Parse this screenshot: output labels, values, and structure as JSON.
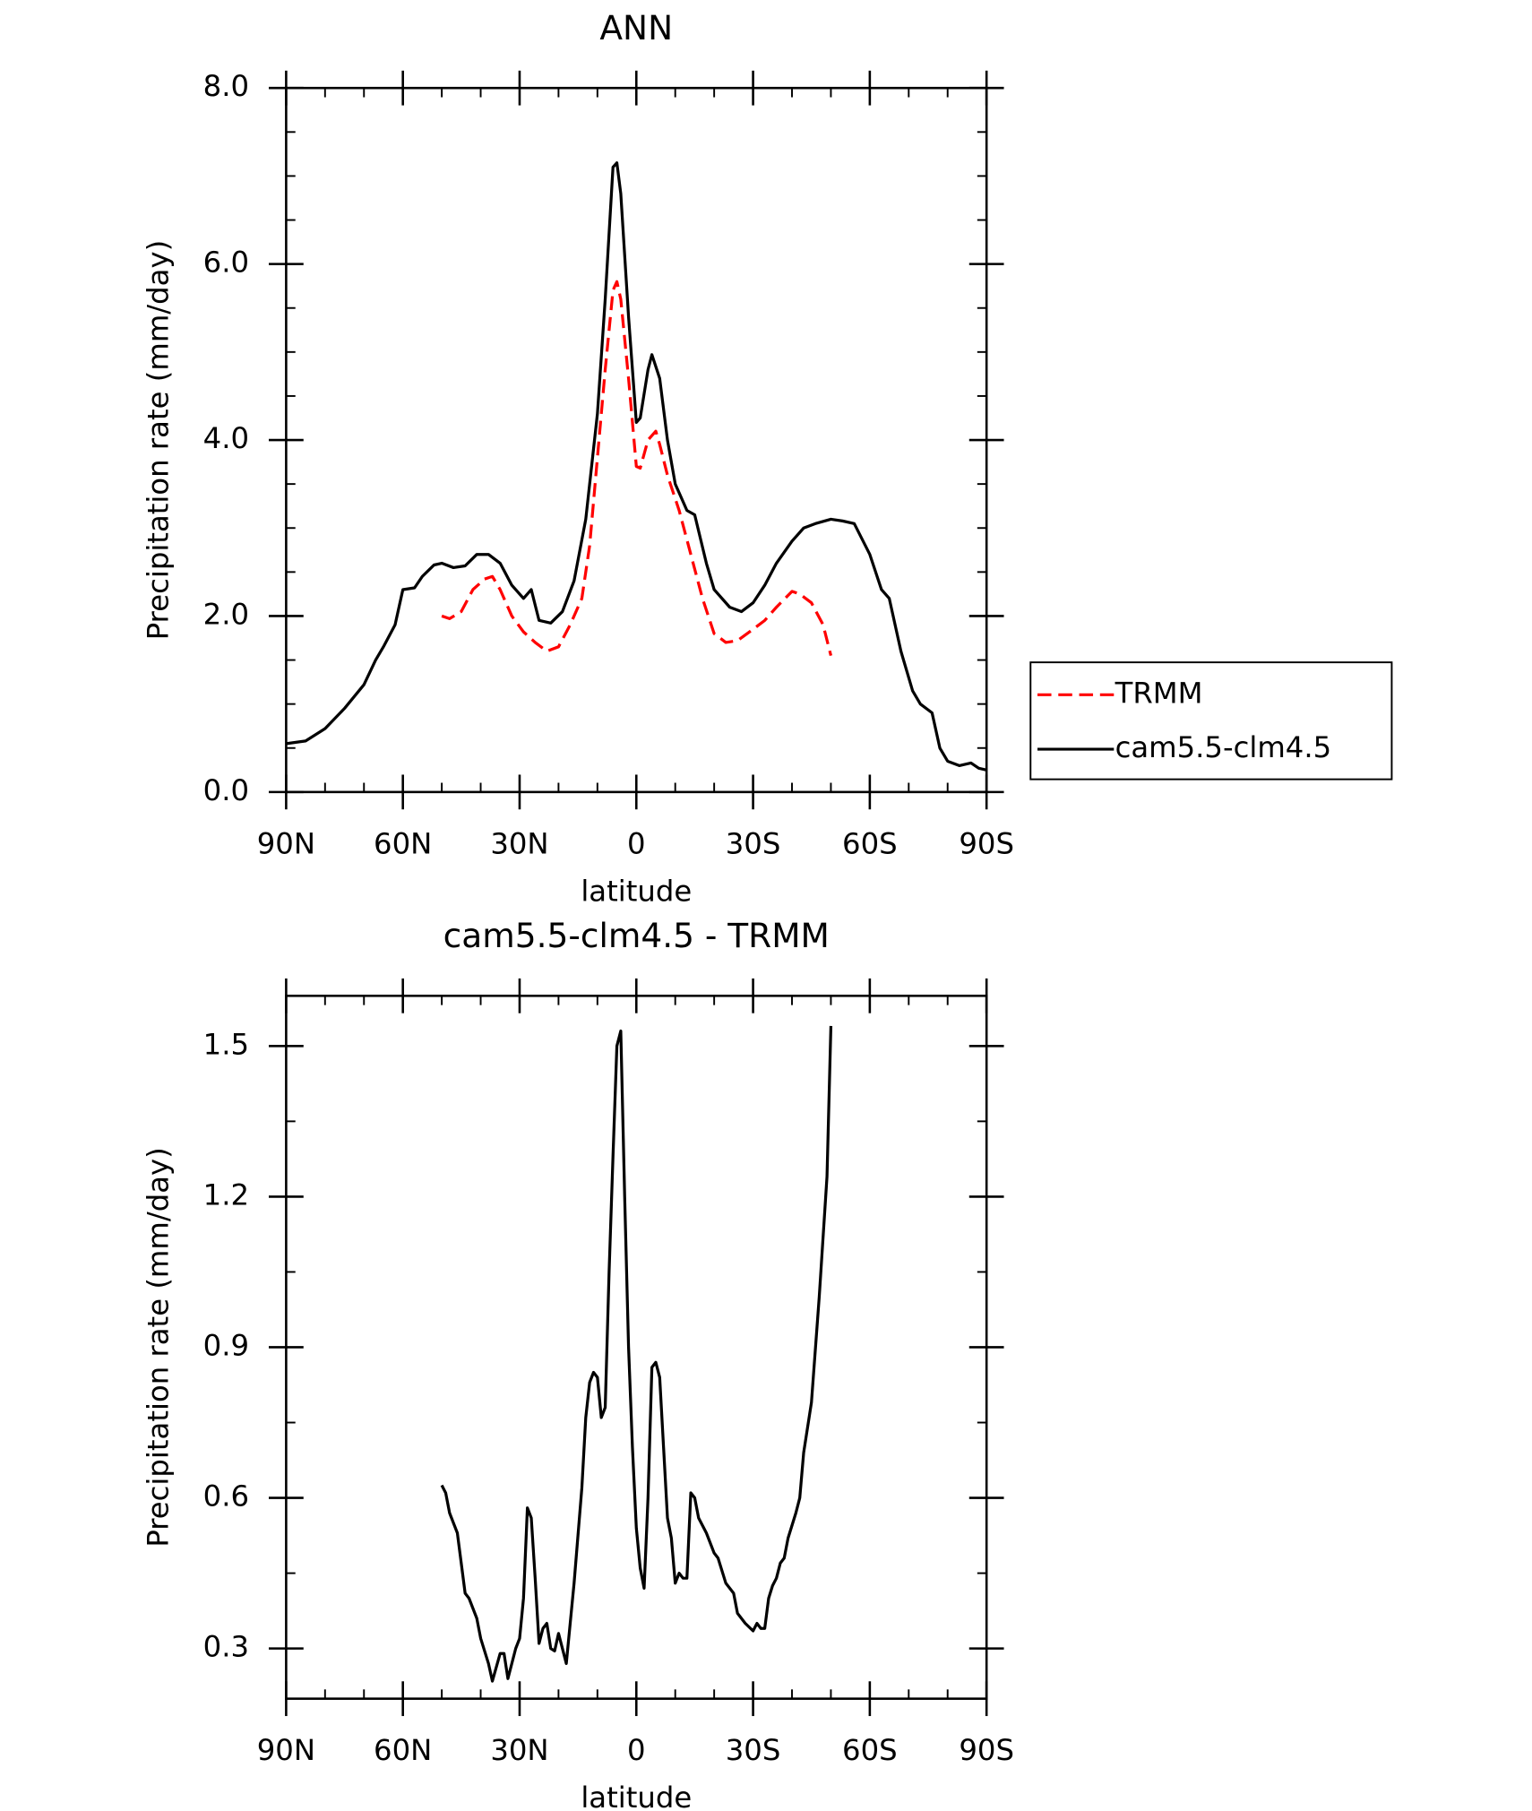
{
  "chart_data": [
    {
      "type": "line",
      "title": "ANN",
      "xlabel": "latitude",
      "ylabel": "Precipitation rate (mm/day)",
      "xlim": [
        90,
        -90
      ],
      "xticks": [
        {
          "value": 90,
          "label": "90N"
        },
        {
          "value": 60,
          "label": "60N"
        },
        {
          "value": 30,
          "label": "30N"
        },
        0,
        {
          "value": -30,
          "label": "30S"
        },
        {
          "value": -60,
          "label": "60S"
        },
        {
          "value": -90,
          "label": "90S"
        }
      ],
      "ylim": [
        0,
        8
      ],
      "yticks": [
        {
          "value": 0,
          "label": "0.0"
        },
        {
          "value": 2,
          "label": "2.0"
        },
        {
          "value": 4,
          "label": "4.0"
        },
        {
          "value": 6,
          "label": "6.0"
        },
        {
          "value": 8,
          "label": "8.0"
        }
      ],
      "legend": "right",
      "series": [
        {
          "name": "TRMM",
          "color": "#ff0000",
          "line_style": "dashed",
          "x": [
            50,
            48,
            45,
            42,
            39,
            37,
            35,
            32,
            29,
            26,
            23,
            20,
            17,
            14,
            12,
            10,
            8,
            6,
            5,
            4,
            2,
            0,
            -1,
            -3,
            -5,
            -6,
            -8,
            -11,
            -14,
            -17,
            -20,
            -23,
            -26,
            -30,
            -33,
            -36,
            -40,
            -42,
            -45,
            -48,
            -50
          ],
          "values": [
            2.0,
            1.97,
            2.05,
            2.3,
            2.42,
            2.45,
            2.3,
            2.0,
            1.82,
            1.7,
            1.6,
            1.65,
            1.9,
            2.2,
            2.8,
            3.8,
            4.8,
            5.7,
            5.8,
            5.6,
            4.7,
            3.7,
            3.68,
            4.0,
            4.1,
            3.95,
            3.6,
            3.2,
            2.7,
            2.2,
            1.8,
            1.7,
            1.72,
            1.85,
            1.95,
            2.1,
            2.28,
            2.25,
            2.15,
            1.9,
            1.55
          ]
        },
        {
          "name": "cam5.5-clm4.5",
          "color": "#000000",
          "line_style": "solid",
          "x": [
            90,
            85,
            80,
            75,
            70,
            67,
            65,
            62,
            60,
            57,
            55,
            52,
            50,
            47,
            44,
            41,
            38,
            35,
            32,
            29,
            27,
            25,
            22,
            19,
            16,
            13,
            10,
            8,
            6,
            5,
            4,
            2,
            0,
            -1,
            -3,
            -4,
            -6,
            -8,
            -10,
            -13,
            -15,
            -18,
            -20,
            -24,
            -27,
            -30,
            -33,
            -36,
            -40,
            -43,
            -46,
            -50,
            -53,
            -56,
            -60,
            -63,
            -65,
            -68,
            -71,
            -73,
            -76,
            -78,
            -80,
            -83,
            -86,
            -88,
            -90
          ],
          "values": [
            0.55,
            0.58,
            0.72,
            0.95,
            1.22,
            1.5,
            1.65,
            1.9,
            2.3,
            2.32,
            2.45,
            2.58,
            2.6,
            2.55,
            2.57,
            2.7,
            2.7,
            2.6,
            2.35,
            2.2,
            2.3,
            1.95,
            1.92,
            2.05,
            2.4,
            3.1,
            4.3,
            5.6,
            7.1,
            7.15,
            6.8,
            5.4,
            4.2,
            4.25,
            4.8,
            4.97,
            4.7,
            4.0,
            3.5,
            3.2,
            3.15,
            2.6,
            2.3,
            2.1,
            2.05,
            2.15,
            2.35,
            2.6,
            2.85,
            3.0,
            3.05,
            3.1,
            3.08,
            3.05,
            2.7,
            2.3,
            2.2,
            1.6,
            1.15,
            1.0,
            0.9,
            0.5,
            0.35,
            0.3,
            0.33,
            0.27,
            0.25
          ]
        }
      ]
    },
    {
      "type": "line",
      "title": "cam5.5-clm4.5 - TRMM",
      "xlabel": "latitude",
      "ylabel": "Precipitation rate (mm/day)",
      "xlim": [
        90,
        -90
      ],
      "xticks": [
        {
          "value": 90,
          "label": "90N"
        },
        {
          "value": 60,
          "label": "60N"
        },
        {
          "value": 30,
          "label": "30N"
        },
        0,
        {
          "value": -30,
          "label": "30S"
        },
        {
          "value": -60,
          "label": "60S"
        },
        {
          "value": -90,
          "label": "90S"
        }
      ],
      "ylim": [
        0.2,
        1.6
      ],
      "yticks": [
        0.3,
        0.6,
        0.9,
        1.2,
        1.5
      ],
      "color": "#000000",
      "x": [
        50,
        49,
        48,
        46,
        44,
        43,
        41,
        40,
        38,
        37,
        35,
        34,
        33,
        31,
        30,
        29,
        28,
        27,
        26,
        25,
        24,
        23,
        22,
        21,
        20,
        18,
        16,
        14,
        13,
        12,
        11,
        10,
        9,
        8,
        7,
        6,
        5,
        4,
        3,
        2,
        1,
        0,
        -1,
        -2,
        -3,
        -4,
        -5,
        -6,
        -7,
        -8,
        -9,
        -10,
        -11,
        -12,
        -13,
        -14,
        -15,
        -16,
        -18,
        -20,
        -21,
        -23,
        -25,
        -26,
        -28,
        -30,
        -31,
        -32,
        -33,
        -34,
        -35,
        -36,
        -37,
        -38,
        -39,
        -41,
        -42,
        -43,
        -45,
        -47,
        -49,
        -50
      ],
      "values": [
        0.625,
        0.61,
        0.57,
        0.53,
        0.41,
        0.4,
        0.36,
        0.32,
        0.27,
        0.235,
        0.29,
        0.29,
        0.24,
        0.3,
        0.32,
        0.4,
        0.58,
        0.56,
        0.44,
        0.31,
        0.34,
        0.35,
        0.3,
        0.295,
        0.33,
        0.27,
        0.43,
        0.62,
        0.76,
        0.83,
        0.85,
        0.84,
        0.76,
        0.78,
        1.05,
        1.28,
        1.5,
        1.53,
        1.2,
        0.9,
        0.7,
        0.54,
        0.46,
        0.42,
        0.6,
        0.86,
        0.87,
        0.84,
        0.7,
        0.56,
        0.52,
        0.43,
        0.45,
        0.44,
        0.44,
        0.61,
        0.6,
        0.56,
        0.53,
        0.49,
        0.48,
        0.43,
        0.41,
        0.37,
        0.35,
        0.335,
        0.35,
        0.34,
        0.34,
        0.4,
        0.425,
        0.44,
        0.47,
        0.48,
        0.52,
        0.57,
        0.6,
        0.69,
        0.79,
        1.0,
        1.24,
        1.54
      ]
    }
  ]
}
